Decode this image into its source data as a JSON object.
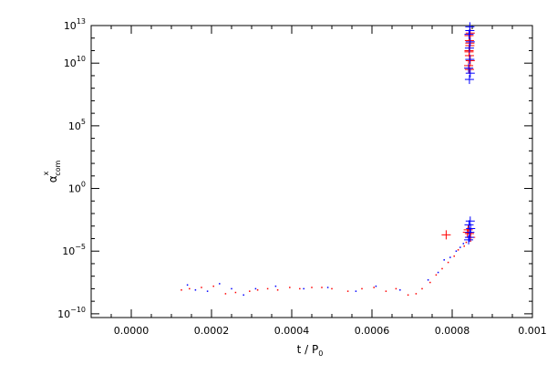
{
  "chart_data": {
    "type": "scatter",
    "title": "",
    "xlabel": {
      "main": "t / P",
      "subscript": "0"
    },
    "ylabel": {
      "main": "α",
      "superscript": "x",
      "subscript": "com"
    },
    "xlim": [
      -0.0001,
      0.001
    ],
    "ylim_log10": [
      -10.3,
      13
    ],
    "y_scale": "log",
    "grid": false,
    "legend": "none",
    "x_ticks": [
      {
        "value": 0.0,
        "label": "0.0000"
      },
      {
        "value": 0.0002,
        "label": "0.0002"
      },
      {
        "value": 0.0004,
        "label": "0.0004"
      },
      {
        "value": 0.0006,
        "label": "0.0006"
      },
      {
        "value": 0.0008,
        "label": "0.0008"
      },
      {
        "value": 0.001,
        "label": "0.001"
      }
    ],
    "y_ticks": [
      {
        "exp": -10,
        "base": "10",
        "sup": "−10"
      },
      {
        "exp": -5,
        "base": "10",
        "sup": "−5"
      },
      {
        "exp": 0,
        "base": "10",
        "sup": "0"
      },
      {
        "exp": 5,
        "base": "10",
        "sup": "5"
      },
      {
        "exp": 10,
        "base": "10",
        "sup": "10"
      },
      {
        "exp": 13,
        "base": "10",
        "sup": "13"
      }
    ],
    "series": [
      {
        "color": "#ff0000",
        "marker": "dot",
        "points": [
          [
            0.000125,
            -8.1
          ],
          [
            0.000145,
            -8.0
          ],
          [
            0.000175,
            -7.9
          ],
          [
            0.000205,
            -7.8
          ],
          [
            0.000235,
            -8.4
          ],
          [
            0.00026,
            -8.3
          ],
          [
            0.000295,
            -8.2
          ],
          [
            0.000315,
            -8.1
          ],
          [
            0.00034,
            -8.0
          ],
          [
            0.000365,
            -8.1
          ],
          [
            0.000395,
            -7.9
          ],
          [
            0.00042,
            -8.0
          ],
          [
            0.00045,
            -7.9
          ],
          [
            0.000475,
            -7.9
          ],
          [
            0.0005,
            -8.0
          ],
          [
            0.00054,
            -8.2
          ],
          [
            0.000575,
            -8.0
          ],
          [
            0.000605,
            -7.9
          ],
          [
            0.000635,
            -8.2
          ],
          [
            0.00066,
            -8.0
          ],
          [
            0.00069,
            -8.5
          ],
          [
            0.00071,
            -8.4
          ],
          [
            0.000725,
            -8.0
          ],
          [
            0.000745,
            -7.5
          ],
          [
            0.00076,
            -6.9
          ],
          [
            0.000775,
            -6.4
          ],
          [
            0.00079,
            -5.9
          ],
          [
            0.000805,
            -5.4
          ],
          [
            0.000815,
            -4.9
          ],
          [
            0.00083,
            -4.6
          ],
          [
            0.000835,
            -4.3
          ]
        ]
      },
      {
        "color": "#0000ff",
        "marker": "dot",
        "points": [
          [
            0.00014,
            -7.7
          ],
          [
            0.00016,
            -8.1
          ],
          [
            0.00019,
            -8.2
          ],
          [
            0.00022,
            -7.6
          ],
          [
            0.00025,
            -8.0
          ],
          [
            0.00028,
            -8.5
          ],
          [
            0.00031,
            -8.0
          ],
          [
            0.00036,
            -7.8
          ],
          [
            0.00043,
            -8.0
          ],
          [
            0.00049,
            -7.9
          ],
          [
            0.00056,
            -8.2
          ],
          [
            0.00061,
            -7.8
          ],
          [
            0.00067,
            -8.1
          ],
          [
            0.00074,
            -7.3
          ],
          [
            0.000765,
            -6.7
          ],
          [
            0.00078,
            -5.7
          ],
          [
            0.000795,
            -5.5
          ],
          [
            0.00081,
            -5.0
          ],
          [
            0.00082,
            -4.7
          ],
          [
            0.000828,
            -4.4
          ]
        ]
      },
      {
        "color": "#ff0000",
        "marker": "plus",
        "points": [
          [
            0.000785,
            -3.7
          ],
          [
            0.00084,
            -3.3
          ],
          [
            0.000843,
            -3.6
          ],
          [
            0.000846,
            -3.9
          ],
          [
            0.000838,
            -3.5
          ],
          [
            0.000842,
            12.2
          ],
          [
            0.000843,
            11.8
          ],
          [
            0.000844,
            11.4
          ],
          [
            0.000842,
            11.0
          ],
          [
            0.000843,
            10.6
          ],
          [
            0.000845,
            10.2
          ],
          [
            0.000841,
            9.8
          ],
          [
            0.000843,
            9.5
          ],
          [
            0.000844,
            11.6
          ],
          [
            0.000842,
            10.9
          ],
          [
            0.000845,
            12.4
          ]
        ]
      },
      {
        "color": "#0000ff",
        "marker": "plus",
        "points": [
          [
            0.000845,
            -2.6
          ],
          [
            0.000842,
            -2.9
          ],
          [
            0.000846,
            -3.2
          ],
          [
            0.000844,
            -3.5
          ],
          [
            0.000843,
            -3.9
          ],
          [
            0.000841,
            -4.1
          ],
          [
            0.000844,
            12.9
          ],
          [
            0.000842,
            12.3
          ],
          [
            0.000845,
            11.7
          ],
          [
            0.000843,
            11.2
          ],
          [
            0.000844,
            10.3
          ],
          [
            0.000841,
            9.6
          ],
          [
            0.000845,
            9.2
          ],
          [
            0.000843,
            8.7
          ],
          [
            0.000844,
            12.6
          ]
        ]
      }
    ]
  }
}
